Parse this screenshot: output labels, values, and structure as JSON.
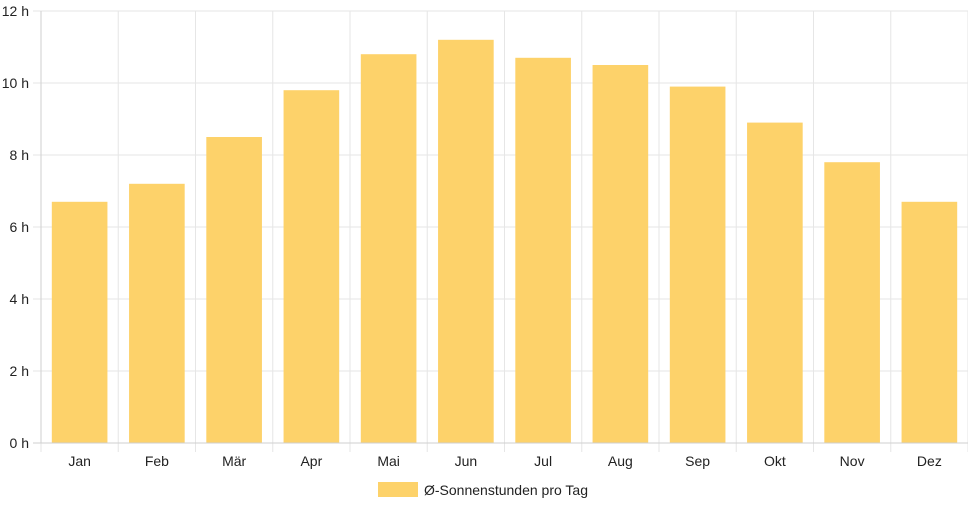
{
  "chart_data": {
    "type": "bar",
    "categories": [
      "Jan",
      "Feb",
      "Mär",
      "Apr",
      "Mai",
      "Jun",
      "Jul",
      "Aug",
      "Sep",
      "Okt",
      "Nov",
      "Dez"
    ],
    "series": [
      {
        "name": "Ø-Sonnenstunden pro Tag",
        "values": [
          6.7,
          7.2,
          8.5,
          9.8,
          10.8,
          11.2,
          10.7,
          10.5,
          9.9,
          8.9,
          7.8,
          6.7
        ],
        "color": "#FDD26A"
      }
    ],
    "y_ticks": [
      "0 h",
      "2 h",
      "4 h",
      "6 h",
      "8 h",
      "10 h",
      "12 h"
    ],
    "ylim": [
      0,
      12
    ],
    "grid": true,
    "legend_position": "bottom"
  }
}
